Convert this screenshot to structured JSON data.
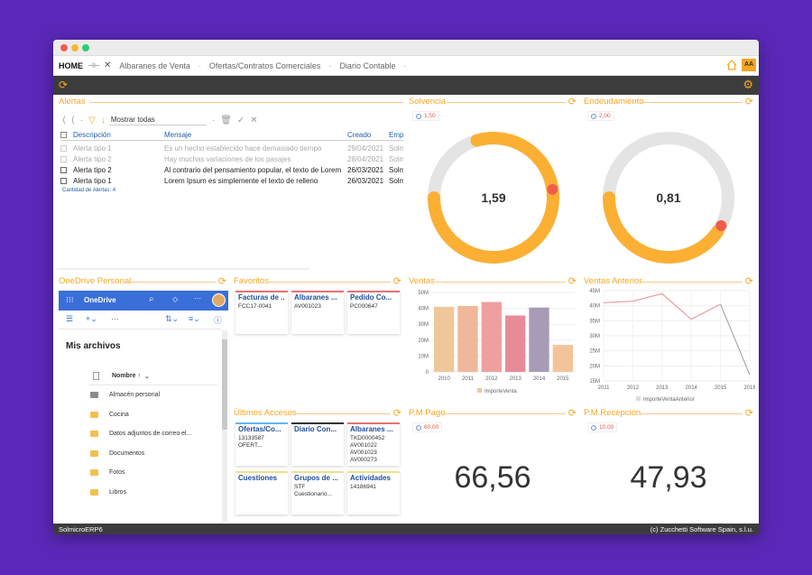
{
  "tabs": {
    "home": "HOME",
    "items": [
      "Albaranes de Venta",
      "Ofertas/Contratos Comerciales",
      "Diario Contable"
    ]
  },
  "alertas": {
    "title": "Alertas",
    "filter": "Mostrar todas",
    "columns": [
      "Descripción",
      "Mensaje",
      "Creado",
      "Empr"
    ],
    "rows": [
      {
        "desc": "Alerta tipo 1",
        "msg": "Es un hecho establecido hace demasiado tiempo",
        "date": "29/04/2021",
        "emp": "Solm",
        "read": true
      },
      {
        "desc": "Alerta tipo 2",
        "msg": "Hay muchas variaciones de los pasajes",
        "date": "28/04/2021",
        "emp": "Solm",
        "read": true
      },
      {
        "desc": "Alerta tipo 2",
        "msg": "Al contrario del pensamiento popular, el texto de Lorem",
        "date": "26/03/2021",
        "emp": "Solm",
        "read": false
      },
      {
        "desc": "Alerta tipo 1",
        "msg": "Lorem Ipsum es simplemente el texto de relleno",
        "date": "26/03/2021",
        "emp": "Solm",
        "read": false
      }
    ],
    "count": "Cantidad de Alertas: 4"
  },
  "solvencia": {
    "title": "Solvencia",
    "badge": "1,50",
    "value": "1,59",
    "fraction": 0.795
  },
  "endeudamiento": {
    "title": "Endeudamiento",
    "badge": "2,00",
    "value": "0,81",
    "fraction": 0.405
  },
  "onedrive": {
    "title": "OneDrive Personal",
    "brand": "OneDrive",
    "heading": "Mis archivos",
    "col_name": "Nombre ↑",
    "items": [
      "Almacén personal",
      "Cocina",
      "Datos adjuntos de correo el...",
      "Documentos",
      "Fotos",
      "Libros"
    ]
  },
  "favoritos": {
    "title": "Favoritos",
    "tiles": [
      {
        "name": "Facturas de ...",
        "sub": "FCC17-0041",
        "color": "#e57373"
      },
      {
        "name": "Albaranes ...",
        "sub": "AV001023",
        "color": "#e57373"
      },
      {
        "name": "Pedido Co...",
        "sub": "PC000647",
        "color": "#e57373"
      }
    ]
  },
  "ultimos": {
    "title": "Últimos Accesos",
    "tiles": [
      {
        "name": "Ofertas/Co...",
        "sub": "13133587 OFERT...",
        "color": "#64b5f6"
      },
      {
        "name": "Diario Con...",
        "sub": "",
        "color": "#333333"
      },
      {
        "name": "Albaranes ...",
        "sub": "TKD0000452\nAV001022\nAV001023\nAV000273",
        "color": "#e57373"
      },
      {
        "name": "Cuestiones",
        "sub": "",
        "color": "#f0e28a"
      },
      {
        "name": "Grupos de ...",
        "sub": "STF Cuestionario...",
        "color": "#f0e28a"
      },
      {
        "name": "Actividades",
        "sub": "14186941",
        "color": "#f0e28a"
      }
    ]
  },
  "ventas": {
    "title": "Ventas",
    "legend": "ImporteVenta"
  },
  "ventas_anterior": {
    "title": "Ventas Anterior",
    "legend": "ImporteVentaAnterior"
  },
  "pmpago": {
    "title": "P.M.Pago",
    "badge": "60,00",
    "value": "66,56"
  },
  "pmrecepcion": {
    "title": "P.M.Recepción",
    "badge": "10,00",
    "value": "47,93"
  },
  "status": {
    "left": "SolmicroERP6",
    "right": "(c) Zucchetti Software Spain, s.l.u."
  },
  "colors": {
    "accent": "#f5a623",
    "gauge": "#fbb034",
    "track": "#e4e4e4",
    "marker": "#f25c4a",
    "purple": "#5a28b8"
  },
  "chart_data": [
    {
      "type": "bar",
      "title": "Ventas",
      "categories": [
        "2010",
        "2011",
        "2012",
        "2013",
        "2014",
        "2015"
      ],
      "series": [
        {
          "name": "ImporteVenta",
          "values": [
            41,
            41.5,
            44,
            35.5,
            40.5,
            17
          ]
        }
      ],
      "ylim": [
        0,
        50
      ],
      "yticks": [
        "50M",
        "40M",
        "30M",
        "20M",
        "10M",
        "0"
      ],
      "bar_colors": [
        "#f0c79a",
        "#f0b79a",
        "#ef9f9f",
        "#e88b98",
        "#a89bb5",
        "#f3c49a"
      ]
    },
    {
      "type": "line",
      "title": "Ventas Anterior",
      "x": [
        "2011",
        "2012",
        "2013",
        "2014",
        "2015",
        "2016"
      ],
      "series": [
        {
          "name": "ImporteVentaAnterior",
          "values": [
            41,
            41.5,
            44,
            35.5,
            40.5,
            17
          ]
        }
      ],
      "ylim": [
        15,
        45
      ],
      "yticks": [
        "45M",
        "40M",
        "35M",
        "30M",
        "25M",
        "20M",
        "15M"
      ]
    }
  ]
}
